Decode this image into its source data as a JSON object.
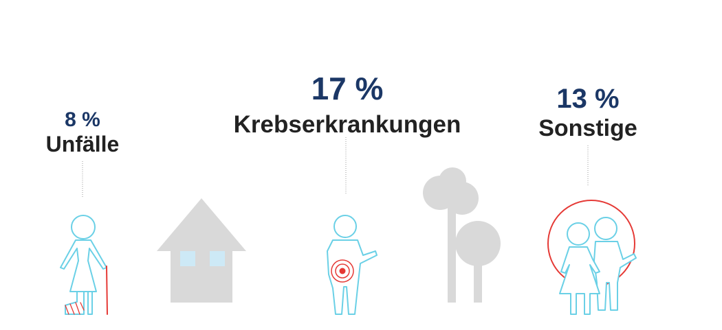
{
  "stats": [
    {
      "percent": "8 %",
      "label": "Unfälle"
    },
    {
      "percent": "17 %",
      "label": "Krebserkrankungen"
    },
    {
      "percent": "13 %",
      "label": "Sonstige"
    }
  ],
  "colors": {
    "percent": "#1b3766",
    "label": "#222222",
    "figure_outline": "#6ad0e6",
    "accent_red": "#e53935",
    "background_shapes": "#d9d9d9",
    "windows": "#cde9f6",
    "connector": "#999999"
  },
  "icons": [
    "injured-person-icon",
    "house-icon",
    "person-with-tumor-icon",
    "trees-icon",
    "family-icon"
  ]
}
